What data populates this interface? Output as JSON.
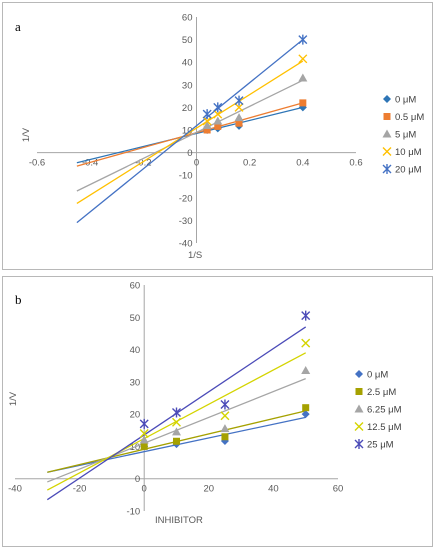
{
  "chart_data": [
    {
      "type": "scatter",
      "panel_label": "a",
      "xlabel": "1/S",
      "ylabel": "1/V",
      "xlim": [
        -0.6,
        0.6
      ],
      "ylim": [
        -40,
        60
      ],
      "xticks": [
        "-0.6",
        "-0.4",
        "-0.2",
        "0",
        "0.2",
        "0.4",
        "0.6"
      ],
      "yticks": [
        "-40",
        "-30",
        "-20",
        "-10",
        "0",
        "10",
        "20",
        "30",
        "40",
        "50",
        "60"
      ],
      "grid": false,
      "legend_position": "right",
      "trendlines": true,
      "series": [
        {
          "name": "0 μM",
          "marker": "diamond",
          "color": "#2e75b6",
          "x": [
            0.04,
            0.08,
            0.16,
            0.4
          ],
          "y": [
            10,
            10.7,
            11.8,
            20
          ],
          "line": {
            "x0": -0.45,
            "y0": -4.5,
            "x1": 0.4,
            "y1": 20
          }
        },
        {
          "name": "0.5 μM",
          "marker": "square",
          "color": "#ed7d31",
          "x": [
            0.04,
            0.08,
            0.16,
            0.4
          ],
          "y": [
            10,
            11.6,
            13,
            22
          ],
          "line": {
            "x0": -0.45,
            "y0": -6,
            "x1": 0.4,
            "y1": 22
          }
        },
        {
          "name": "5 μM",
          "marker": "triangle",
          "color": "#a5a5a5",
          "x": [
            0.04,
            0.08,
            0.16,
            0.4
          ],
          "y": [
            12,
            14,
            15.5,
            33
          ],
          "line": {
            "x0": -0.45,
            "y0": -17,
            "x1": 0.4,
            "y1": 32
          }
        },
        {
          "name": "10 μM",
          "marker": "x",
          "color": "#ffc000",
          "x": [
            0.04,
            0.08,
            0.16,
            0.4
          ],
          "y": [
            14,
            17,
            20,
            41.5
          ],
          "line": {
            "x0": -0.45,
            "y0": -22.5,
            "x1": 0.4,
            "y1": 40.5
          }
        },
        {
          "name": "20 μM",
          "marker": "star",
          "color": "#4472c4",
          "x": [
            0.04,
            0.08,
            0.16,
            0.4
          ],
          "y": [
            17,
            20,
            23,
            50
          ],
          "line": {
            "x0": -0.45,
            "y0": -31,
            "x1": 0.4,
            "y1": 50
          }
        }
      ]
    },
    {
      "type": "scatter",
      "panel_label": "b",
      "xlabel": "INHIBITOR",
      "ylabel": "1/V",
      "xlim": [
        -40,
        60
      ],
      "ylim": [
        -10,
        60
      ],
      "xticks": [
        "-40",
        "-20",
        "0",
        "20",
        "40",
        "60"
      ],
      "yticks": [
        "-10",
        "0",
        "10",
        "20",
        "30",
        "40",
        "50",
        "60"
      ],
      "grid": false,
      "legend_position": "right",
      "trendlines": true,
      "series": [
        {
          "name": "0 μM",
          "marker": "diamond",
          "color": "#4472c4",
          "x": [
            0,
            10,
            25,
            50
          ],
          "y": [
            10,
            10.7,
            11.7,
            20
          ],
          "line": {
            "x0": -30,
            "y0": 2,
            "x1": 50,
            "y1": 19
          }
        },
        {
          "name": "2.5 μM",
          "marker": "square",
          "color": "#a5a100",
          "x": [
            0,
            10,
            25,
            50
          ],
          "y": [
            10,
            11.6,
            13,
            22
          ],
          "line": {
            "x0": -30,
            "y0": 2,
            "x1": 50,
            "y1": 21
          }
        },
        {
          "name": "6.25 μM",
          "marker": "triangle",
          "color": "#a5a5a5",
          "x": [
            0,
            10,
            25,
            50
          ],
          "y": [
            12,
            14.5,
            15.5,
            33.5
          ],
          "line": {
            "x0": -30,
            "y0": -1,
            "x1": 50,
            "y1": 31
          }
        },
        {
          "name": "12.5 μM",
          "marker": "x",
          "color": "#d4d400",
          "x": [
            0,
            10,
            25,
            50
          ],
          "y": [
            14,
            17.5,
            19.5,
            42
          ],
          "line": {
            "x0": -30,
            "y0": -3.5,
            "x1": 50,
            "y1": 39
          }
        },
        {
          "name": "25 μM",
          "marker": "star",
          "color": "#4b4bb8",
          "x": [
            0,
            10,
            25,
            50
          ],
          "y": [
            17,
            20.5,
            23,
            50.5
          ],
          "line": {
            "x0": -30,
            "y0": -6.5,
            "x1": 50,
            "y1": 47
          }
        }
      ]
    }
  ]
}
